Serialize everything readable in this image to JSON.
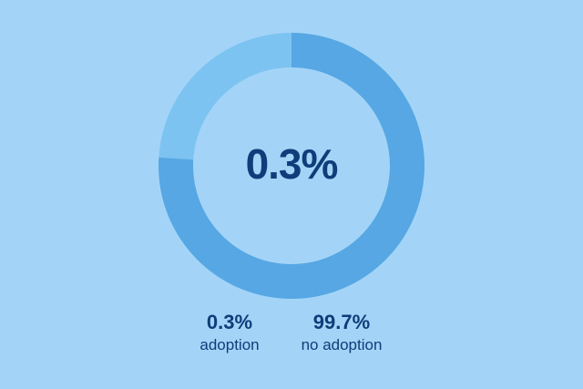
{
  "chart_data": {
    "type": "pie",
    "donut": true,
    "center_label": "0.3%",
    "slices": [
      {
        "label": "adoption",
        "value": 0.3,
        "display": "0.3%",
        "color": "#7cc3f1"
      },
      {
        "label": "no adoption",
        "value": 99.7,
        "display": "99.7%",
        "color": "#56a7e3"
      }
    ],
    "legend_position": "bottom"
  },
  "colors": {
    "background": "#a3d4f7",
    "text": "#0f3d7a"
  }
}
